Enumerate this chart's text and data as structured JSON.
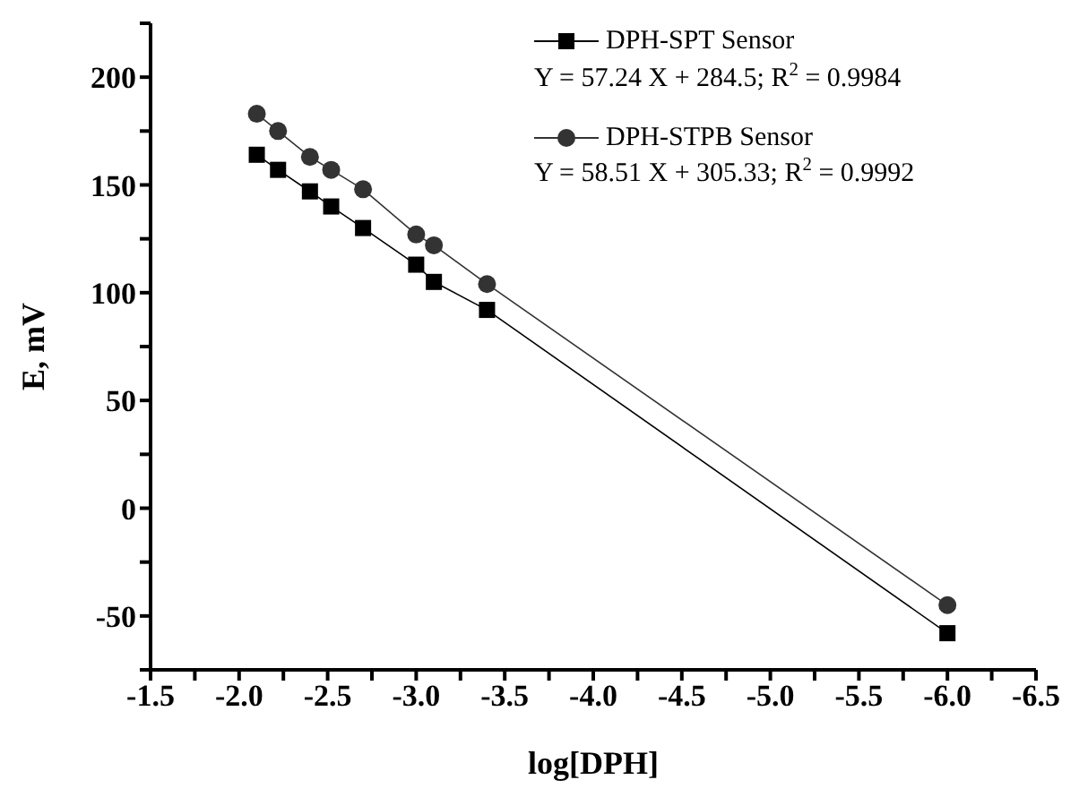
{
  "chart_data": {
    "type": "line",
    "xlabel": "log[DPH]",
    "ylabel": "E, mV",
    "xlim": [
      -1.5,
      -6.5
    ],
    "xticks": [
      {
        "value": -1.5,
        "label": "-1.5"
      },
      {
        "value": -1.75,
        "label": null
      },
      {
        "value": -2,
        "label": "-2.0"
      },
      {
        "value": -2.25,
        "label": null
      },
      {
        "value": -2.5,
        "label": "-2.5"
      },
      {
        "value": -2.75,
        "label": null
      },
      {
        "value": -3,
        "label": "-3.0"
      },
      {
        "value": -3.25,
        "label": null
      },
      {
        "value": -3.5,
        "label": "-3.5"
      },
      {
        "value": -3.75,
        "label": null
      },
      {
        "value": -4,
        "label": "-4.0"
      },
      {
        "value": -4.25,
        "label": null
      },
      {
        "value": -4.5,
        "label": "-4.5"
      },
      {
        "value": -4.75,
        "label": null
      },
      {
        "value": -5,
        "label": "-5.0"
      },
      {
        "value": -5.25,
        "label": null
      },
      {
        "value": -5.5,
        "label": "-5.5"
      },
      {
        "value": -5.75,
        "label": null
      },
      {
        "value": -6,
        "label": "-6.0"
      },
      {
        "value": -6.25,
        "label": null
      },
      {
        "value": -6.5,
        "label": "-6.5"
      }
    ],
    "ylim": [
      -75,
      225
    ],
    "yticks": [
      {
        "value": -75,
        "label": null
      },
      -50,
      {
        "value": -25,
        "label": null
      },
      0,
      {
        "value": 25,
        "label": null
      },
      50,
      {
        "value": 75,
        "label": null
      },
      100,
      {
        "value": 125,
        "label": null
      },
      150,
      {
        "value": 175,
        "label": null
      },
      200,
      {
        "value": 225,
        "label": null
      }
    ],
    "x": [
      -2.1,
      -2.22,
      -2.4,
      -2.52,
      -2.7,
      -3.0,
      -3.1,
      -3.4,
      -6.0
    ],
    "series": [
      {
        "name": "DPH-SPT Sensor",
        "color": "#000000",
        "marker": "square",
        "values": [
          164,
          157,
          147,
          140,
          130,
          113,
          105,
          92,
          -58
        ]
      },
      {
        "name": "DPH-STPB Sensor",
        "color": "#333333",
        "marker": "circle",
        "values": [
          183,
          175,
          163,
          157,
          148,
          127,
          122,
          104,
          -45
        ]
      }
    ],
    "annotations": [
      "Y = 57.24 X + 284.5; R$^{2}$ =  0.9984",
      "Y = 58.51 X + 305.33; R$^{2}$ =  0.9992"
    ],
    "legend": "top right",
    "grid": false
  }
}
